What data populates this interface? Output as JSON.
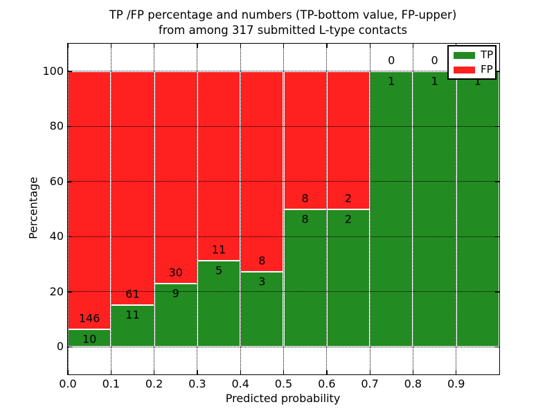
{
  "title": {
    "line1": "TP /FP percentage and numbers (TP-bottom value, FP-upper)",
    "line2": "from among 317 submitted L-type contacts"
  },
  "chart_data": {
    "type": "bar",
    "stacked": true,
    "title": "TP /FP percentage and numbers (TP-bottom value, FP-upper) from among 317 submitted L-type contacts",
    "xlabel": "Predicted probability",
    "ylabel": "Percentage",
    "xlim": [
      0.0,
      1.0
    ],
    "ylim": [
      -10,
      110
    ],
    "bin_edges": [
      0.0,
      0.1,
      0.2,
      0.3,
      0.4,
      0.5,
      0.6,
      0.7,
      0.8,
      0.9,
      1.0
    ],
    "categories": [
      "0.0-0.1",
      "0.1-0.2",
      "0.2-0.3",
      "0.3-0.4",
      "0.4-0.5",
      "0.5-0.6",
      "0.6-0.7",
      "0.7-0.8",
      "0.8-0.9",
      "0.9-1.0"
    ],
    "series": [
      {
        "name": "TP",
        "color": "#228b22",
        "counts": [
          10,
          11,
          9,
          5,
          3,
          8,
          2,
          1,
          1,
          1
        ]
      },
      {
        "name": "FP",
        "color": "#ff2020",
        "counts": [
          146,
          61,
          30,
          11,
          8,
          8,
          2,
          0,
          0,
          0
        ]
      }
    ],
    "tp_percent": [
      6.4,
      15.3,
      23.1,
      31.3,
      27.3,
      50.0,
      50.0,
      100.0,
      100.0,
      100.0
    ],
    "total_contacts": 317,
    "xticks": {
      "values": [
        0.0,
        0.1,
        0.2,
        0.3,
        0.4,
        0.5,
        0.6,
        0.7,
        0.8,
        0.9
      ],
      "labels": [
        "0.0",
        "0.1",
        "0.2",
        "0.3",
        "0.4",
        "0.5",
        "0.6",
        "0.7",
        "0.8",
        "0.9"
      ]
    },
    "yticks": {
      "values": [
        0,
        20,
        40,
        60,
        80,
        100
      ],
      "labels": [
        "0",
        "20",
        "40",
        "60",
        "80",
        "100"
      ]
    },
    "grid": {
      "on": true,
      "style": "dotted"
    },
    "bar_edge_color": "#ffffff",
    "legend": {
      "position": "upper right",
      "entries": [
        "TP",
        "FP"
      ]
    }
  }
}
